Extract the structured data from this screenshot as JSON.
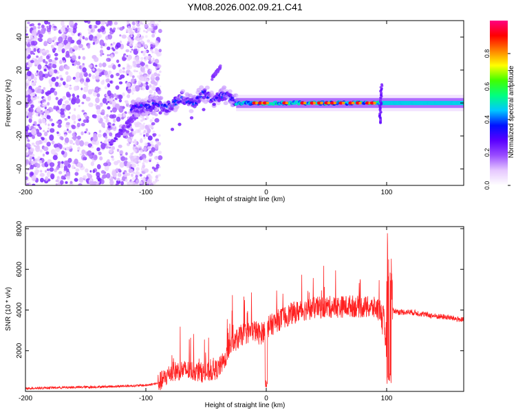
{
  "title": "YM08.2026.002.09.21.C41",
  "chart_data": [
    {
      "type": "heatmap",
      "title": "YM08.2026.002.09.21.C41",
      "xlabel": "Height of straight line (km)",
      "ylabel": "Frequency (Hz)",
      "xlim": [
        -200,
        164
      ],
      "ylim": [
        -50,
        50
      ],
      "xticks": [
        -200,
        -100,
        0,
        100
      ],
      "yticks": [
        -40,
        -20,
        0,
        20,
        40
      ],
      "colorbar": {
        "label": "Normalized spectral amplitude",
        "range": [
          0,
          1
        ],
        "ticks": [
          0,
          0.2,
          0.4,
          0.6,
          0.8
        ],
        "tick_labels": [
          "0.0",
          "0.2",
          "0.4",
          "0.6",
          "0.8"
        ],
        "colormap": [
          "#ffffff",
          "#e6c8ff",
          "#9a4dff",
          "#5a00ff",
          "#0010ff",
          "#00c8ff",
          "#00ff80",
          "#40ff00",
          "#ffff00",
          "#ff8000",
          "#ff0000",
          "#ff0080"
        ]
      },
      "description_regions": [
        {
          "x_range": [
            -200,
            -90
          ],
          "freq_range": [
            -50,
            50
          ],
          "amplitude": 0.15,
          "pattern": "scattered noise"
        },
        {
          "x_range": [
            -110,
            -25
          ],
          "center_freq": [
            -3,
            0,
            2,
            4,
            6,
            10
          ],
          "amplitude": 0.3,
          "pattern": "wandering band"
        },
        {
          "x_range": [
            -25,
            95
          ],
          "center_freq": 0,
          "amplitude": 0.45,
          "pattern": "steady band with red peaks"
        },
        {
          "x_range": [
            95,
            164
          ],
          "center_freq": 0,
          "amplitude": 0.4,
          "pattern": "smooth steady band"
        }
      ],
      "red_peaks_x": [
        -10,
        -5,
        -1,
        15,
        30,
        38,
        44,
        50,
        55,
        62,
        70,
        76,
        84,
        88
      ],
      "spur_up": {
        "x": [
          -45,
          -38
        ],
        "freq": [
          15,
          22
        ]
      },
      "spur_at_95": {
        "x": 95,
        "freq": [
          -12,
          12
        ]
      }
    },
    {
      "type": "line",
      "xlabel": "Height of straight line (km)",
      "ylabel": "SNR (10 * v/v)",
      "xlim": [
        -200,
        164
      ],
      "ylim": [
        0,
        8100
      ],
      "xticks": [
        -200,
        -100,
        0,
        100
      ],
      "yticks": [
        2000,
        4000,
        6000,
        8000
      ],
      "series": [
        {
          "name": "SNR",
          "color": "#ff2020",
          "x": [
            -200,
            -180,
            -160,
            -140,
            -120,
            -100,
            -90,
            -85,
            -80,
            -75,
            -70,
            -60,
            -50,
            -40,
            -35,
            -30,
            -25,
            -20,
            -15,
            -10,
            -5,
            0,
            5,
            10,
            20,
            30,
            40,
            50,
            60,
            70,
            80,
            90,
            95,
            100,
            101,
            103,
            105,
            110,
            120,
            130,
            140,
            150,
            164
          ],
          "values": [
            150,
            180,
            200,
            220,
            260,
            300,
            400,
            600,
            900,
            1000,
            1050,
            1000,
            900,
            1100,
            1500,
            2200,
            2500,
            2800,
            2900,
            3000,
            2800,
            3100,
            3300,
            3500,
            3800,
            4000,
            4100,
            4150,
            4150,
            4200,
            4150,
            4100,
            4000,
            2500,
            200,
            7600,
            4000,
            3900,
            3900,
            3800,
            3700,
            3650,
            3500
          ]
        }
      ]
    }
  ]
}
